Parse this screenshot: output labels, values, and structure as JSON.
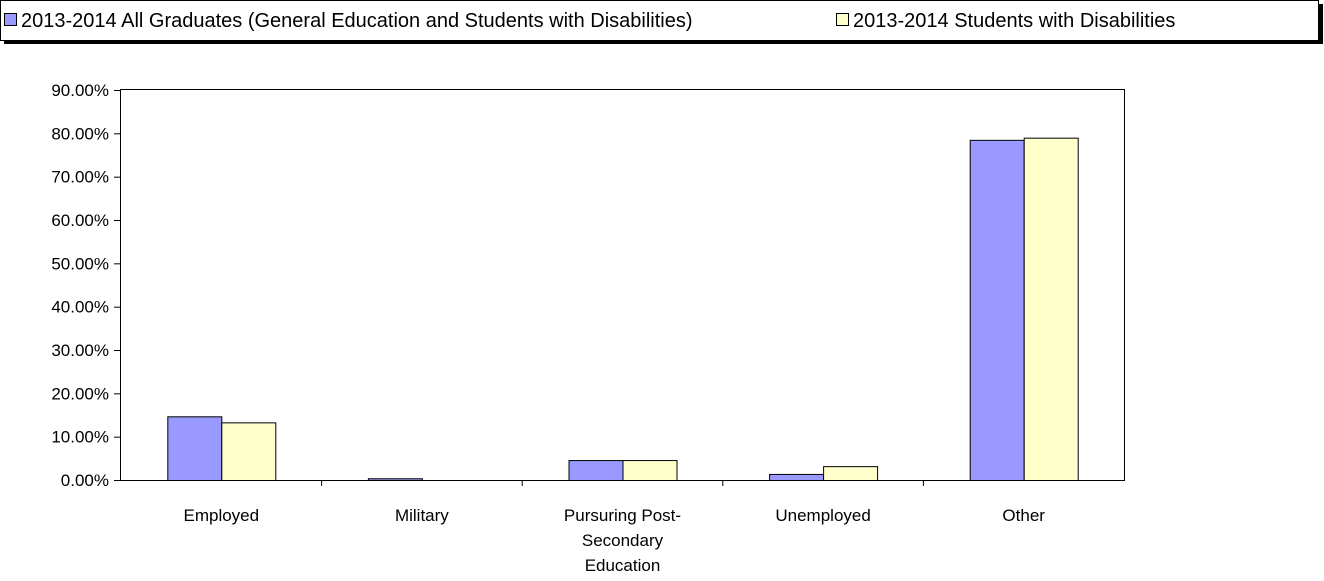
{
  "chart_data": {
    "type": "bar",
    "categories": [
      [
        "Employed"
      ],
      [
        "Military"
      ],
      [
        "Pursuring Post-",
        "Secondary",
        "Education"
      ],
      [
        "Unemployed"
      ],
      [
        "Other"
      ]
    ],
    "series": [
      {
        "name": "2013-2014 All Graduates (General Education and Students with Disabilities)",
        "color": "#9999ff",
        "values": [
          14.7,
          0.4,
          4.6,
          1.4,
          78.5
        ]
      },
      {
        "name": "2013-2014 Students with Disabilities",
        "color": "#ffffcc",
        "values": [
          13.3,
          0.0,
          4.6,
          3.2,
          79.0
        ]
      }
    ],
    "ylim": [
      0,
      90
    ],
    "ytick_step": 10,
    "ytick_labels": [
      "0.00%",
      "10.00%",
      "20.00%",
      "30.00%",
      "40.00%",
      "50.00%",
      "60.00%",
      "70.00%",
      "80.00%",
      "90.00%"
    ],
    "grid": false,
    "legend_position": "top",
    "title": "",
    "xlabel": "",
    "ylabel": ""
  }
}
